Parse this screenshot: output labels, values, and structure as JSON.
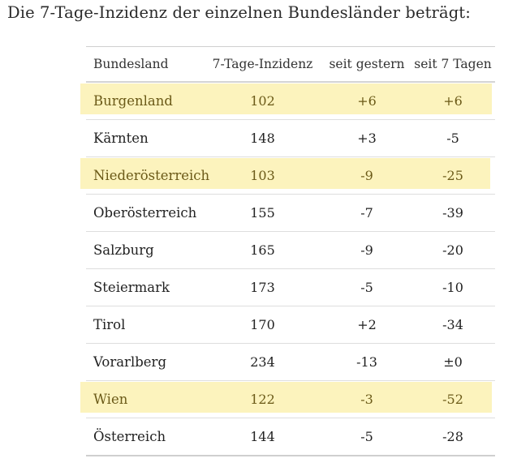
{
  "heading": "Die 7-Tage-Inzidenz der einzelnen Bundesländer beträgt:",
  "table": {
    "headers": {
      "bundesland": "Bundesland",
      "inzidenz": "7-Tage-Inzidenz",
      "seit_gestern": "seit gestern",
      "seit_7_tagen": "seit 7 Tagen"
    },
    "rows": [
      {
        "bundesland": "Burgenland",
        "inzidenz": "102",
        "seit_gestern": "+6",
        "seit_7_tagen": "+6",
        "highlighted": true
      },
      {
        "bundesland": "Kärnten",
        "inzidenz": "148",
        "seit_gestern": "+3",
        "seit_7_tagen": "-5",
        "highlighted": false
      },
      {
        "bundesland": "Niederösterreich",
        "inzidenz": "103",
        "seit_gestern": "-9",
        "seit_7_tagen": "-25",
        "highlighted": true
      },
      {
        "bundesland": "Oberösterreich",
        "inzidenz": "155",
        "seit_gestern": "-7",
        "seit_7_tagen": "-39",
        "highlighted": false
      },
      {
        "bundesland": "Salzburg",
        "inzidenz": "165",
        "seit_gestern": "-9",
        "seit_7_tagen": "-20",
        "highlighted": false
      },
      {
        "bundesland": "Steiermark",
        "inzidenz": "173",
        "seit_gestern": "-5",
        "seit_7_tagen": "-10",
        "highlighted": false
      },
      {
        "bundesland": "Tirol",
        "inzidenz": "170",
        "seit_gestern": "+2",
        "seit_7_tagen": "-34",
        "highlighted": false
      },
      {
        "bundesland": "Vorarlberg",
        "inzidenz": "234",
        "seit_gestern": "-13",
        "seit_7_tagen": "±0",
        "highlighted": false
      },
      {
        "bundesland": "Wien",
        "inzidenz": "122",
        "seit_gestern": "-3",
        "seit_7_tagen": "-52",
        "highlighted": true
      },
      {
        "bundesland": "Österreich",
        "inzidenz": "144",
        "seit_gestern": "-5",
        "seit_7_tagen": "-28",
        "highlighted": false
      }
    ]
  },
  "colors": {
    "highlight": "#fcf3bd",
    "highlight_text": "#6b5a18"
  }
}
